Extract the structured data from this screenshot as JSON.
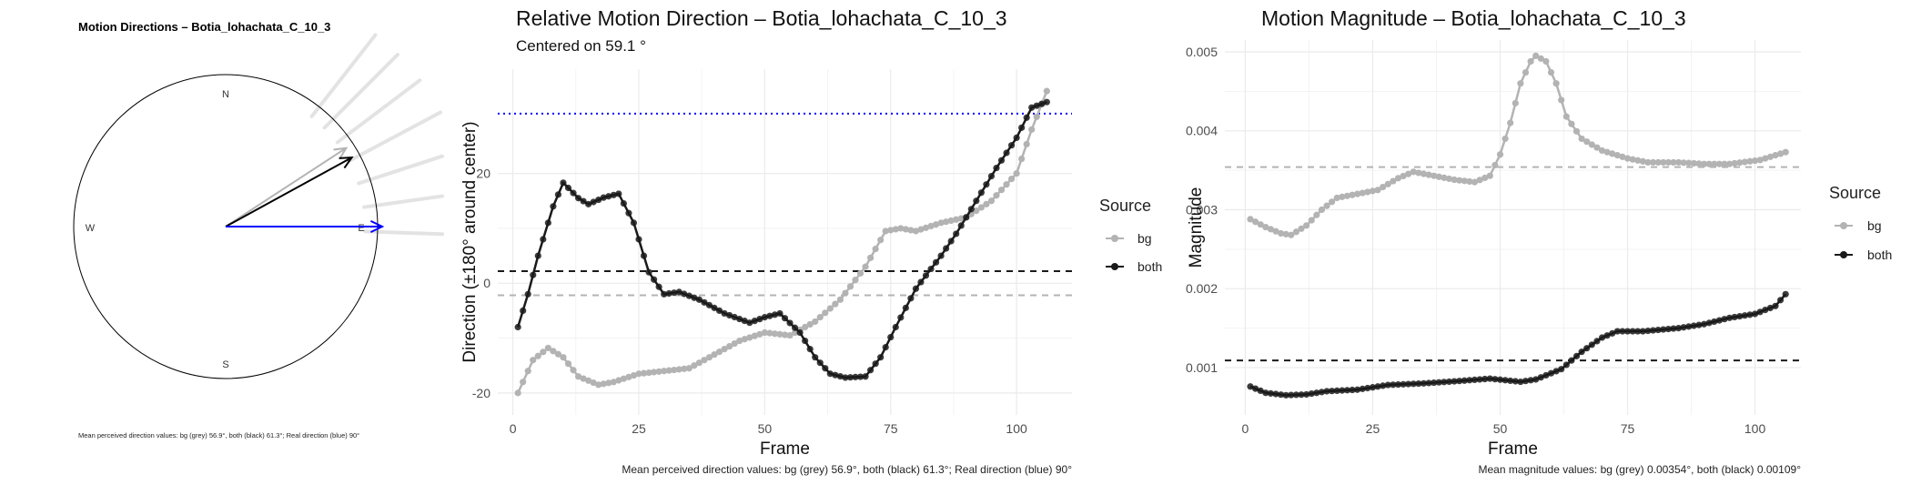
{
  "colors": {
    "bg": "#b3b3b3",
    "both": "#1a1a1a",
    "real": "#0000ff",
    "grid": "#ebebeb",
    "rays": "#e3e3e3"
  },
  "compass": {
    "title": "Motion Directions – Botia_lohachata_C_10_3",
    "north": "N",
    "south": "S",
    "east": "E",
    "west": "W",
    "caption": "Mean perceived direction values: bg (grey) 56.9°, both (black) 61.3°; Real direction (blue) 90°"
  },
  "direction_panel": {
    "title": "Relative Motion Direction – Botia_lohachata_C_10_3",
    "subtitle": "Centered on  59.1 °",
    "caption": "Mean perceived direction values: bg (grey) 56.9°, both (black) 61.3°; Real direction (blue) 90°"
  },
  "magnitude_panel": {
    "title": "Motion Magnitude – Botia_lohachata_C_10_3",
    "caption": "Mean magnitude values: bg (grey) 0.00354°, both (black) 0.00109°"
  },
  "legend": {
    "title": "Source",
    "items": [
      "bg",
      "both"
    ]
  },
  "chart_data": [
    {
      "type": "compass",
      "title": "Motion Directions – Botia_lohachata_C_10_3",
      "arrows": [
        {
          "name": "bg",
          "angle_deg": 56.9
        },
        {
          "name": "both",
          "angle_deg": 61.3
        },
        {
          "name": "real",
          "angle_deg": 90
        }
      ],
      "ray_angles_deg": [
        38,
        45,
        53,
        62,
        72,
        82,
        92
      ]
    },
    {
      "type": "line",
      "title": "Relative Motion Direction – Botia_lohachata_C_10_3",
      "subtitle": "Centered on  59.1 °",
      "xlabel": "Frame",
      "ylabel": "Direction (±180° around center)",
      "xlim": [
        -3,
        111
      ],
      "ylim": [
        -24,
        39
      ],
      "xticks": [
        0,
        25,
        50,
        75,
        100
      ],
      "yticks": [
        -20,
        0,
        20
      ],
      "hlines": [
        {
          "name": "real",
          "y": 30.9,
          "style": "dotted"
        },
        {
          "name": "both-mean",
          "y": 2.2,
          "style": "dashed"
        },
        {
          "name": "bg-mean",
          "y": -2.2,
          "style": "dashed"
        }
      ],
      "series": [
        {
          "name": "bg",
          "points": [
            [
              1,
              -20
            ],
            [
              4,
              -14
            ],
            [
              7,
              -11.8
            ],
            [
              10,
              -13.5
            ],
            [
              13,
              -17
            ],
            [
              17,
              -18.5
            ],
            [
              20,
              -18
            ],
            [
              25,
              -16.5
            ],
            [
              30,
              -16
            ],
            [
              35,
              -15.5
            ],
            [
              40,
              -13
            ],
            [
              45,
              -10.5
            ],
            [
              50,
              -9
            ],
            [
              55,
              -9.5
            ],
            [
              60,
              -7
            ],
            [
              65,
              -3
            ],
            [
              70,
              3
            ],
            [
              74,
              9.5
            ],
            [
              77,
              10
            ],
            [
              80,
              9.5
            ],
            [
              85,
              11
            ],
            [
              90,
              12
            ],
            [
              95,
              15
            ],
            [
              100,
              20
            ],
            [
              103,
              28
            ],
            [
              106,
              35
            ]
          ]
        },
        {
          "name": "both",
          "points": [
            [
              1,
              -8
            ],
            [
              3,
              -2
            ],
            [
              5,
              5
            ],
            [
              8,
              14
            ],
            [
              10,
              18.3
            ],
            [
              13,
              15.5
            ],
            [
              15,
              14.4
            ],
            [
              18,
              15.6
            ],
            [
              21,
              16.3
            ],
            [
              24,
              11
            ],
            [
              27,
              2
            ],
            [
              30,
              -2
            ],
            [
              33,
              -1.6
            ],
            [
              37,
              -3
            ],
            [
              42,
              -5.5
            ],
            [
              47,
              -7.2
            ],
            [
              50,
              -6.2
            ],
            [
              53,
              -5.5
            ],
            [
              57,
              -9
            ],
            [
              60,
              -13.5
            ],
            [
              63,
              -16.5
            ],
            [
              66,
              -17.2
            ],
            [
              70,
              -17
            ],
            [
              73,
              -13.5
            ],
            [
              76,
              -8
            ],
            [
              80,
              -1
            ],
            [
              85,
              5
            ],
            [
              88,
              9
            ],
            [
              92,
              15
            ],
            [
              96,
              21
            ],
            [
              100,
              26.5
            ],
            [
              103,
              32
            ],
            [
              106,
              33
            ]
          ]
        }
      ]
    },
    {
      "type": "line",
      "title": "Motion Magnitude – Botia_lohachata_C_10_3",
      "xlabel": "Frame",
      "ylabel": "Magnitude",
      "xlim": [
        -4,
        109
      ],
      "ylim": [
        0.0004,
        0.00515
      ],
      "xticks": [
        0,
        25,
        50,
        75,
        100
      ],
      "yticks": [
        0.001,
        0.002,
        0.003,
        0.004,
        0.005
      ],
      "hlines": [
        {
          "name": "bg-mean",
          "y": 0.00354,
          "style": "dashed"
        },
        {
          "name": "both-mean",
          "y": 0.00109,
          "style": "dashed"
        }
      ],
      "series": [
        {
          "name": "bg",
          "points": [
            [
              1,
              0.00288
            ],
            [
              4,
              0.00278
            ],
            [
              7,
              0.0027
            ],
            [
              9,
              0.00268
            ],
            [
              12,
              0.0028
            ],
            [
              15,
              0.003
            ],
            [
              18,
              0.00315
            ],
            [
              22,
              0.0032
            ],
            [
              26,
              0.00325
            ],
            [
              30,
              0.0034
            ],
            [
              33,
              0.00348
            ],
            [
              37,
              0.00343
            ],
            [
              41,
              0.00338
            ],
            [
              45,
              0.00335
            ],
            [
              48,
              0.00343
            ],
            [
              50,
              0.0037
            ],
            [
              52,
              0.0041
            ],
            [
              54,
              0.0046
            ],
            [
              56,
              0.00488
            ],
            [
              57,
              0.00495
            ],
            [
              59,
              0.00488
            ],
            [
              61,
              0.0046
            ],
            [
              63,
              0.00418
            ],
            [
              66,
              0.0039
            ],
            [
              70,
              0.00375
            ],
            [
              75,
              0.00365
            ],
            [
              79,
              0.0036
            ],
            [
              85,
              0.0036
            ],
            [
              90,
              0.00358
            ],
            [
              95,
              0.00358
            ],
            [
              101,
              0.00363
            ],
            [
              106,
              0.00373
            ]
          ]
        },
        {
          "name": "both",
          "points": [
            [
              1,
              0.00076
            ],
            [
              4,
              0.00068
            ],
            [
              8,
              0.00065
            ],
            [
              12,
              0.00066
            ],
            [
              16,
              0.0007
            ],
            [
              22,
              0.00072
            ],
            [
              28,
              0.00078
            ],
            [
              35,
              0.0008
            ],
            [
              42,
              0.00083
            ],
            [
              48,
              0.00086
            ],
            [
              54,
              0.00082
            ],
            [
              57,
              0.00085
            ],
            [
              62,
              0.00098
            ],
            [
              66,
              0.0012
            ],
            [
              70,
              0.00138
            ],
            [
              73,
              0.00146
            ],
            [
              78,
              0.00146
            ],
            [
              85,
              0.0015
            ],
            [
              90,
              0.00155
            ],
            [
              95,
              0.00163
            ],
            [
              100,
              0.00168
            ],
            [
              104,
              0.00178
            ],
            [
              106,
              0.00193
            ]
          ]
        }
      ]
    }
  ]
}
